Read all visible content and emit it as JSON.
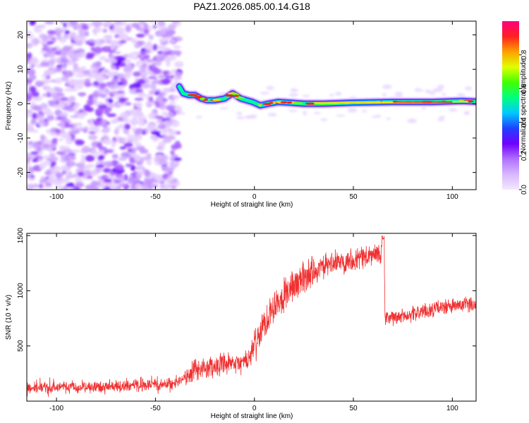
{
  "title": "PAZ1.2026.085.00.14.G18",
  "colors": {
    "snr_line": "#f03030",
    "frame": "#000000",
    "colorbar": [
      "#f4e8ff",
      "#d8b8ff",
      "#b070ff",
      "#7000ff",
      "#2040ff",
      "#00c8ff",
      "#00ff80",
      "#40ff00",
      "#e0ff00",
      "#ffa000",
      "#ff2020",
      "#ff0080"
    ]
  },
  "chart_data": [
    {
      "type": "heatmap",
      "title": "PAZ1.2026.085.00.14.G18",
      "xlabel": "Height of straight line (km)",
      "ylabel": "Frequency (Hz)",
      "xlim": [
        -115,
        112
      ],
      "ylim": [
        -25,
        24
      ],
      "xticks": [
        -100,
        -50,
        0,
        50,
        100
      ],
      "yticks": [
        -20,
        -10,
        0,
        10,
        20
      ],
      "xtick_labels": [
        "-100",
        "-50",
        "0",
        "50",
        "100"
      ],
      "ytick_labels": [
        "-20",
        "-10",
        "0",
        "10",
        "20"
      ],
      "noise_region_km": [
        -115,
        -38
      ],
      "signal_trace": {
        "start_km": -38,
        "points": [
          {
            "x": -38,
            "y": 5.0
          },
          {
            "x": -36,
            "y": 3.0
          },
          {
            "x": -33,
            "y": 2.5
          },
          {
            "x": -30,
            "y": 2.5
          },
          {
            "x": -27,
            "y": 1.5
          },
          {
            "x": -24,
            "y": 1.0
          },
          {
            "x": -20,
            "y": 1.0
          },
          {
            "x": -15,
            "y": 1.5
          },
          {
            "x": -11,
            "y": 3.0
          },
          {
            "x": -7,
            "y": 1.5
          },
          {
            "x": -4,
            "y": 1.0
          },
          {
            "x": -1,
            "y": 0.5
          },
          {
            "x": 3,
            "y": -0.5
          },
          {
            "x": 7,
            "y": 0.0
          },
          {
            "x": 12,
            "y": 0.5
          },
          {
            "x": 18,
            "y": 0.3
          },
          {
            "x": 25,
            "y": 0.0
          },
          {
            "x": 35,
            "y": 0.0
          },
          {
            "x": 50,
            "y": 0.3
          },
          {
            "x": 70,
            "y": 0.5
          },
          {
            "x": 90,
            "y": 0.5
          },
          {
            "x": 105,
            "y": 0.8
          },
          {
            "x": 112,
            "y": 0.6
          }
        ]
      },
      "colorbar": {
        "label": "Normalized spectral amplitude",
        "range": [
          0,
          1
        ],
        "ticks": [
          0.0,
          0.2,
          0.4,
          0.6,
          0.8
        ],
        "tick_labels": [
          "0.0",
          "0.2",
          "0.4",
          "0.6",
          "0.8"
        ]
      }
    },
    {
      "type": "line",
      "title": "",
      "xlabel": "Height of straight line (km)",
      "ylabel": "SNR (10 * v/v)",
      "xlim": [
        -115,
        112
      ],
      "ylim": [
        0,
        1520
      ],
      "xticks": [
        -100,
        -50,
        0,
        50,
        100
      ],
      "yticks": [
        500,
        1000,
        1500
      ],
      "xtick_labels": [
        "-100",
        "-50",
        "0",
        "50",
        "100"
      ],
      "ytick_labels": [
        "500",
        "1000",
        "1500"
      ],
      "series": [
        {
          "name": "SNR",
          "trend": [
            {
              "x": -115,
              "y": 120
            },
            {
              "x": -80,
              "y": 130
            },
            {
              "x": -45,
              "y": 150
            },
            {
              "x": -35,
              "y": 200
            },
            {
              "x": -30,
              "y": 280
            },
            {
              "x": -20,
              "y": 320
            },
            {
              "x": -10,
              "y": 330
            },
            {
              "x": -3,
              "y": 370
            },
            {
              "x": 0,
              "y": 500
            },
            {
              "x": 5,
              "y": 700
            },
            {
              "x": 10,
              "y": 880
            },
            {
              "x": 20,
              "y": 1050
            },
            {
              "x": 30,
              "y": 1180
            },
            {
              "x": 40,
              "y": 1250
            },
            {
              "x": 50,
              "y": 1290
            },
            {
              "x": 60,
              "y": 1320
            },
            {
              "x": 65.5,
              "y": 1340
            },
            {
              "x": 66,
              "y": 740
            },
            {
              "x": 80,
              "y": 790
            },
            {
              "x": 95,
              "y": 850
            },
            {
              "x": 112,
              "y": 880
            }
          ],
          "spike_peak": {
            "x": 65,
            "y": 1510
          }
        }
      ]
    }
  ]
}
